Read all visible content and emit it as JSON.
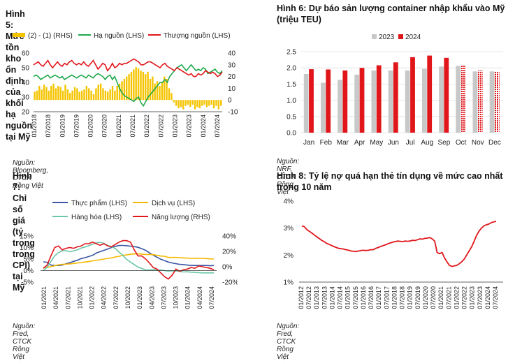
{
  "panels": {
    "p5": {
      "title": "Hình 5: Mức tồn kho ổn định của khối hạ nguồn tại Mỹ",
      "source": "Nguồn: Bloomberg, CTCK Rồng Việt"
    },
    "p6": {
      "title": "Hình 6: Dự báo sản lượng container nhập khẩu vào Mỹ (triệu TEU)",
      "source": "Nguồn: NRF, CTCK Rồng Việt"
    },
    "p7": {
      "title": "Hình 7: Chỉ số giá (tỷ trọng trong CPI) tại Mỹ",
      "source": "Nguồn: Fred, CTCK Rồng Việt"
    },
    "p8": {
      "title": "Hình 8: Tỷ lệ nợ quá hạn thẻ tín dụng về mức cao nhất trong 10 năm",
      "source": "Nguồn: Fred, CTCK Rồng Việt"
    }
  },
  "colors": {
    "gold": "#f5c400",
    "green": "#1fa84a",
    "red": "#e0161b",
    "grey": "#c8c8c8",
    "navy": "#3a56a5",
    "orange": "#f5b800",
    "teal": "#6cc6a8",
    "grid": "#e0e0e0",
    "axis": "#333333"
  },
  "chart_data": [
    {
      "id": "fig5",
      "type": "bar+line",
      "title": "",
      "legend": [
        "(2) - (1) (RHS)",
        "Hạ nguồn (LHS)",
        "Thượng nguồn (LHS)"
      ],
      "legend_position": "top",
      "x_tick_labels": [
        "01/2018",
        "07/2018",
        "01/2019",
        "07/2019",
        "01/2020",
        "07/2020",
        "01/2021",
        "07/2021",
        "01/2022",
        "07/2022",
        "01/2023",
        "07/2023",
        "01/2024",
        "07/2024"
      ],
      "left_axis": {
        "ylim": [
          20,
          60
        ],
        "ticks": [
          "20",
          "30",
          "40",
          "50",
          "60"
        ]
      },
      "right_axis": {
        "ylim": [
          -10,
          40
        ],
        "ticks": [
          "-10",
          "0",
          "10",
          "20",
          "30",
          "40"
        ]
      },
      "bars_rhs": [
        7,
        8,
        12,
        9,
        13,
        11,
        8,
        12,
        14,
        10,
        12,
        11,
        8,
        13,
        9,
        6,
        8,
        11,
        10,
        7,
        8,
        9,
        12,
        10,
        8,
        5,
        10,
        13,
        14,
        10,
        8,
        7,
        9,
        12,
        8,
        12,
        14,
        16,
        18,
        20,
        22,
        24,
        26,
        28,
        27,
        25,
        24,
        22,
        24,
        18,
        20,
        14,
        16,
        12,
        15,
        20,
        18,
        10,
        6,
        -2,
        -5,
        -7,
        -6,
        -8,
        -5,
        -4,
        -6,
        -4,
        -8,
        -6,
        -7,
        -5,
        -4,
        -6,
        -5,
        -4,
        -7,
        -5,
        -8,
        -5
      ],
      "series": [
        {
          "name": "Hạ nguồn (LHS)",
          "axis": "left",
          "values": [
            44,
            45,
            44,
            42,
            43,
            44,
            45,
            43,
            44,
            45,
            44,
            43,
            44,
            42,
            43,
            44,
            45,
            44,
            43,
            44,
            45,
            44,
            43,
            45,
            44,
            43,
            45,
            46,
            45,
            44,
            42,
            44,
            45,
            42,
            44,
            40,
            36,
            33,
            31,
            30,
            29,
            28,
            27,
            29,
            30,
            26,
            24,
            27,
            30,
            32,
            34,
            36,
            38,
            40,
            40,
            42,
            40,
            44,
            46,
            48,
            50,
            51,
            52,
            50,
            48,
            50,
            52,
            50,
            48,
            49,
            48,
            50,
            49,
            46,
            47,
            48,
            49,
            47,
            46,
            48
          ]
        },
        {
          "name": "Thượng nguồn (LHS)",
          "axis": "left",
          "values": [
            52,
            53,
            54,
            52,
            51,
            53,
            55,
            52,
            50,
            52,
            54,
            52,
            51,
            53,
            52,
            54,
            55,
            53,
            52,
            53,
            52,
            54,
            52,
            51,
            53,
            55,
            52,
            49,
            51,
            53,
            52,
            48,
            50,
            53,
            50,
            51,
            53,
            52,
            53,
            53,
            54,
            55,
            56,
            55,
            54,
            52,
            52,
            53,
            54,
            54,
            53,
            52,
            51,
            50,
            52,
            53,
            51,
            50,
            49,
            48,
            50,
            49,
            48,
            47,
            46,
            45,
            46,
            44,
            44,
            46,
            45,
            46,
            48,
            47,
            46,
            47,
            46,
            44,
            45,
            47
          ]
        }
      ]
    },
    {
      "id": "fig6",
      "type": "bar",
      "title": "",
      "legend": [
        "2023",
        "2024"
      ],
      "legend_position": "top",
      "categories": [
        "Jan",
        "Feb",
        "Mar",
        "Apr",
        "May",
        "Jun",
        "Jul",
        "Aug",
        "Sep",
        "Oct",
        "Nov",
        "Dec"
      ],
      "series": [
        {
          "name": "2023",
          "values": [
            1.81,
            1.54,
            1.63,
            1.79,
            1.92,
            1.92,
            1.92,
            1.97,
            2.04,
            2.06,
            1.89,
            1.89
          ]
        },
        {
          "name": "2024",
          "values": [
            1.96,
            1.95,
            1.92,
            2.0,
            2.08,
            2.17,
            2.33,
            2.38,
            2.31,
            2.07,
            1.92,
            1.89
          ]
        }
      ],
      "forecast_from_index": 9,
      "ylim": [
        0,
        2.5
      ],
      "y_ticks": [
        "0.0",
        "0.5",
        "1.0",
        "1.5",
        "2.0",
        "2.5"
      ]
    },
    {
      "id": "fig7",
      "type": "line",
      "title": "",
      "legend": [
        "Thực phẩm (LHS)",
        "Dịch vụ (LHS)",
        "Hàng hóa (LHS)",
        "Năng lượng (RHS)"
      ],
      "legend_position": "top",
      "x_tick_labels": [
        "01/2021",
        "04/2021",
        "07/2021",
        "10/2021",
        "01/2022",
        "04/2022",
        "07/2022",
        "10/2022",
        "01/2023",
        "04/2023",
        "07/2023",
        "10/2023",
        "01/2024",
        "04/2024",
        "07/2024"
      ],
      "left_axis": {
        "ylim": [
          -5,
          15
        ],
        "ticks": [
          "-5%",
          "0%",
          "5%",
          "10%",
          "15%"
        ]
      },
      "right_axis": {
        "ylim": [
          -20,
          40
        ],
        "ticks": [
          "-20%",
          "0%",
          "20%",
          "40%"
        ]
      },
      "series": [
        {
          "name": "Thực phẩm (LHS)",
          "axis": "left",
          "values": [
            3.8,
            3.6,
            2.4,
            2.2,
            2.2,
            2.4,
            3.0,
            3.4,
            4.0,
            4.5,
            5.2,
            5.6,
            6.1,
            6.6,
            7.6,
            8.2,
            8.8,
            9.4,
            10.0,
            10.5,
            10.9,
            10.9,
            10.8,
            10.6,
            10.4,
            10.1,
            9.5,
            8.8,
            7.7,
            6.7,
            5.8,
            4.9,
            4.3,
            3.7,
            3.3,
            3.0,
            2.7,
            2.6,
            2.4,
            2.2,
            2.2,
            2.2,
            2.2,
            2.2,
            2.1,
            2.2
          ]
        },
        {
          "name": "Dịch vụ (LHS)",
          "axis": "left",
          "values": [
            1.3,
            1.4,
            1.7,
            2.1,
            2.5,
            2.7,
            2.8,
            2.9,
            3.1,
            3.3,
            3.5,
            3.7,
            3.9,
            4.2,
            4.5,
            4.7,
            5.0,
            5.3,
            5.5,
            5.9,
            6.2,
            6.6,
            6.8,
            7.1,
            7.2,
            7.3,
            7.1,
            7.0,
            7.0,
            6.9,
            6.6,
            6.3,
            6.2,
            5.7,
            5.7,
            5.7,
            5.6,
            5.5,
            5.4,
            5.3,
            5.4,
            5.3,
            5.3,
            5.2,
            5.1,
            5.0
          ]
        },
        {
          "name": "Hàng hóa (LHS)",
          "axis": "left",
          "values": [
            0.0,
            1.4,
            3.9,
            6.4,
            7.8,
            8.6,
            8.6,
            8.2,
            8.5,
            9.0,
            9.8,
            10.2,
            10.8,
            11.4,
            12.1,
            12.3,
            11.8,
            10.9,
            10.3,
            9.6,
            8.0,
            6.6,
            4.8,
            3.7,
            2.6,
            1.5,
            0.9,
            0.3,
            0.2,
            0.5,
            0.1,
            0.3,
            0.0,
            -0.3,
            -0.1,
            -0.2,
            -0.3,
            -0.6,
            -0.5,
            -0.7,
            -0.8,
            -0.9,
            -1.0,
            -1.0,
            -1.0,
            -1.0
          ]
        },
        {
          "name": "Năng lượng (RHS)",
          "axis": "right",
          "values": [
            -2,
            2,
            14,
            25,
            27,
            22,
            24,
            25,
            24,
            26,
            27,
            30,
            30,
            32,
            30,
            28,
            30,
            27,
            26,
            29,
            32,
            34,
            34,
            32,
            22,
            14,
            14,
            10,
            5,
            -1,
            -3,
            -8,
            -13,
            -16,
            -11,
            -3,
            -6,
            -4,
            -3,
            -1,
            -2,
            1,
            0,
            -1,
            -2,
            -4
          ]
        }
      ]
    },
    {
      "id": "fig8",
      "type": "line",
      "title": "",
      "x_tick_labels": [
        "01/2012",
        "07/2012",
        "01/2013",
        "07/2013",
        "01/2014",
        "07/2014",
        "01/2015",
        "07/2015",
        "01/2016",
        "07/2016",
        "01/2017",
        "07/2017",
        "01/2018",
        "07/2018",
        "01/2019",
        "07/2019",
        "01/2020",
        "07/2020",
        "01/2021",
        "07/2021",
        "01/2022",
        "07/2022",
        "01/2023",
        "07/2023",
        "01/2024",
        "07/2024"
      ],
      "ylim": [
        1,
        4
      ],
      "y_ticks": [
        "1%",
        "2%",
        "3%",
        "4%"
      ],
      "series": [
        {
          "name": "",
          "values": [
            3.08,
            3.05,
            2.95,
            2.88,
            2.82,
            2.75,
            2.68,
            2.62,
            2.55,
            2.5,
            2.44,
            2.4,
            2.36,
            2.32,
            2.28,
            2.25,
            2.24,
            2.22,
            2.2,
            2.18,
            2.15,
            2.14,
            2.13,
            2.15,
            2.17,
            2.18,
            2.17,
            2.18,
            2.2,
            2.2,
            2.25,
            2.28,
            2.32,
            2.35,
            2.38,
            2.42,
            2.45,
            2.48,
            2.5,
            2.52,
            2.51,
            2.5,
            2.52,
            2.51,
            2.52,
            2.55,
            2.54,
            2.57,
            2.6,
            2.59,
            2.62,
            2.63,
            2.65,
            2.6,
            2.52,
            2.1,
            2.05,
            2.1,
            1.9,
            1.75,
            1.62,
            1.58,
            1.6,
            1.62,
            1.68,
            1.75,
            1.85,
            2.0,
            2.15,
            2.3,
            2.5,
            2.72,
            2.88,
            3.0,
            3.08,
            3.12,
            3.15,
            3.2,
            3.23,
            3.25
          ]
        }
      ]
    }
  ]
}
